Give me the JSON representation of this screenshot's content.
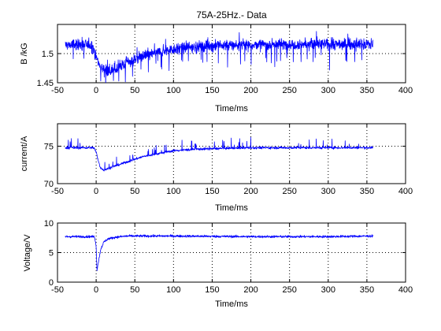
{
  "figure": {
    "background": "#ffffff",
    "trace_color": "#0000ff"
  },
  "chart_data": [
    {
      "type": "line",
      "title": "75A-25Hz.- Data",
      "xlabel": "Time/ms",
      "ylabel": "B /kG",
      "xlim": [
        -50,
        400
      ],
      "ylim": [
        1.45,
        1.55
      ],
      "xticks": [
        -50,
        0,
        50,
        100,
        150,
        200,
        250,
        300,
        350,
        400
      ],
      "yticks": [
        1.45,
        1.5
      ],
      "grid": true,
      "series": [
        {
          "color": "#0000ff",
          "noise": 0.012,
          "spikes": "down",
          "points": [
            [
              -40,
              1.515
            ],
            [
              -5,
              1.515
            ],
            [
              0,
              1.495
            ],
            [
              5,
              1.478
            ],
            [
              15,
              1.47
            ],
            [
              25,
              1.472
            ],
            [
              40,
              1.485
            ],
            [
              60,
              1.496
            ],
            [
              80,
              1.502
            ],
            [
              100,
              1.508
            ],
            [
              130,
              1.512
            ],
            [
              160,
              1.514
            ],
            [
              200,
              1.515
            ],
            [
              260,
              1.516
            ],
            [
              300,
              1.516
            ],
            [
              358,
              1.516
            ]
          ]
        }
      ]
    },
    {
      "type": "line",
      "title": "",
      "xlabel": "Time/ms",
      "ylabel": "current/A",
      "xlim": [
        -50,
        400
      ],
      "ylim": [
        70,
        78
      ],
      "xticks": [
        -50,
        0,
        50,
        100,
        150,
        200,
        250,
        300,
        350,
        400
      ],
      "yticks": [
        70,
        75
      ],
      "grid": true,
      "series": [
        {
          "color": "#0000ff",
          "noise": 0.2,
          "spikes": "up",
          "points": [
            [
              -40,
              74.8
            ],
            [
              -3,
              74.8
            ],
            [
              0,
              74.2
            ],
            [
              5,
              72.2
            ],
            [
              10,
              71.8
            ],
            [
              20,
              72.2
            ],
            [
              40,
              72.9
            ],
            [
              60,
              73.6
            ],
            [
              80,
              74.0
            ],
            [
              100,
              74.4
            ],
            [
              130,
              74.6
            ],
            [
              160,
              74.7
            ],
            [
              200,
              74.8
            ],
            [
              358,
              74.8
            ]
          ]
        }
      ]
    },
    {
      "type": "line",
      "title": "",
      "xlabel": "Time/ms",
      "ylabel": "Voltage/V",
      "xlim": [
        -50,
        400
      ],
      "ylim": [
        0,
        10
      ],
      "xticks": [
        -50,
        0,
        50,
        100,
        150,
        200,
        250,
        300,
        350,
        400
      ],
      "yticks": [
        0,
        5,
        10
      ],
      "grid": true,
      "series": [
        {
          "color": "#0000ff",
          "noise": 0.25,
          "spikes": "none",
          "points": [
            [
              -40,
              7.7
            ],
            [
              -2,
              7.7
            ],
            [
              0,
              6.0
            ],
            [
              1,
              2.0
            ],
            [
              3,
              3.5
            ],
            [
              6,
              5.6
            ],
            [
              10,
              6.8
            ],
            [
              15,
              7.3
            ],
            [
              25,
              7.6
            ],
            [
              40,
              7.8
            ],
            [
              100,
              7.8
            ],
            [
              200,
              7.7
            ],
            [
              300,
              7.7
            ],
            [
              358,
              7.8
            ]
          ]
        }
      ]
    }
  ]
}
